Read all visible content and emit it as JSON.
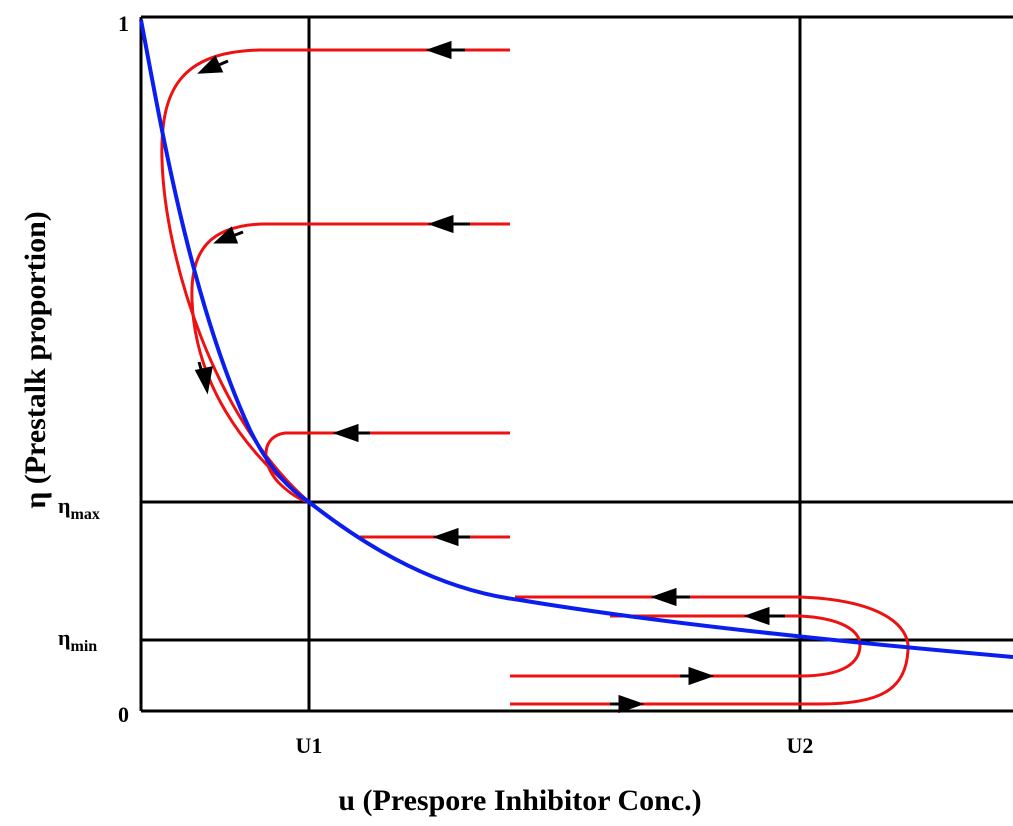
{
  "x_axis": {
    "title": "u (Prespore Inhibitor Conc.)",
    "ticks": [
      "U1",
      "U2"
    ]
  },
  "y_axis": {
    "title": "η (Prestalk proportion)",
    "top_label": "1",
    "bottom_label": "0",
    "eta_symbol": "η",
    "eta_max_sub": "max",
    "eta_min_sub": "min"
  },
  "colors": {
    "axes": "#000000",
    "nullcline": "#0a1ef0",
    "trajectories": "#ee1111",
    "arrows": "#000000"
  }
}
